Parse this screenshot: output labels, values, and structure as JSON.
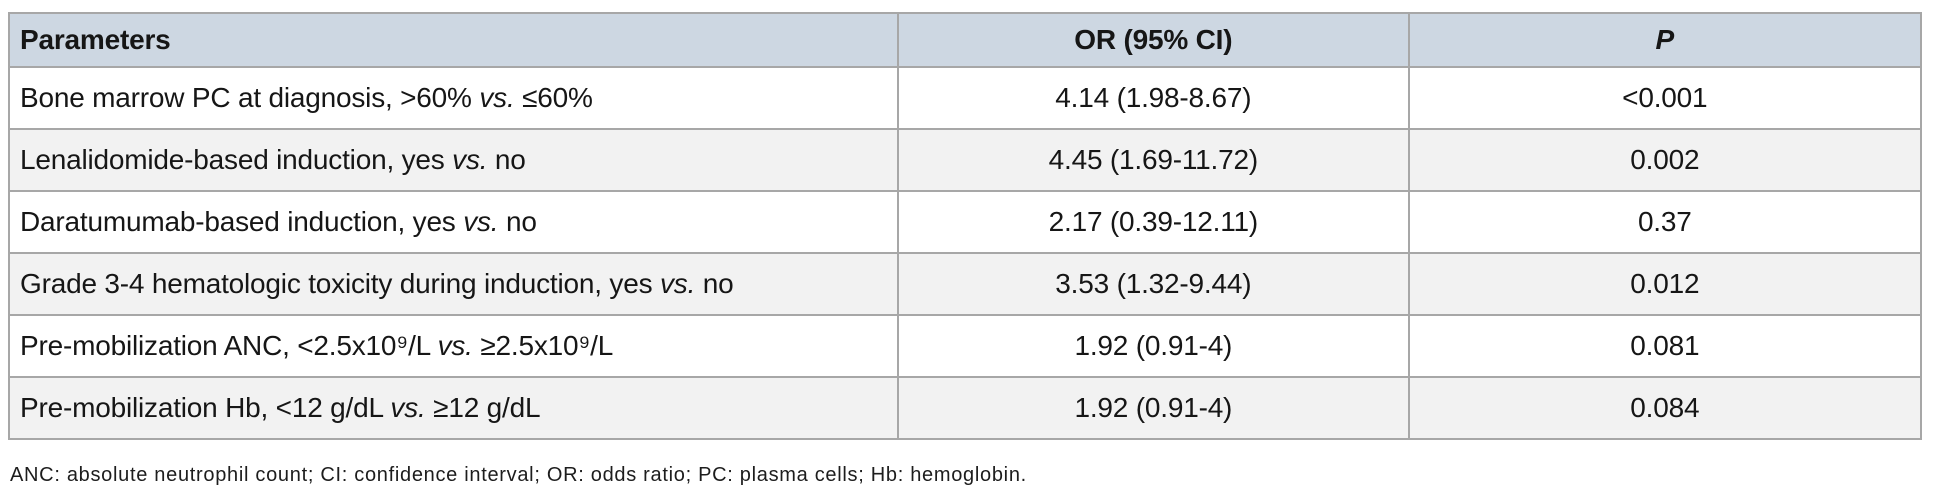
{
  "colors": {
    "header_bg": "#cdd7e2",
    "header_text": "#233f70",
    "row_alt_bg": "#f2f2f2",
    "border": "#a7a7a7",
    "body_text": "#161616"
  },
  "table": {
    "headers": {
      "parameters": "Parameters",
      "or_ci": "OR (95% CI)",
      "p": "P"
    },
    "rows": [
      {
        "param_before_vs": "Bone marrow PC at diagnosis, >60% ",
        "vs_label": "vs.",
        "param_after_vs": " ≤60%",
        "or_ci": "4.14 (1.98-8.67)",
        "p_value": "<0.001"
      },
      {
        "param_before_vs": "Lenalidomide-based induction, yes ",
        "vs_label": "vs.",
        "param_after_vs": " no",
        "or_ci": "4.45 (1.69-11.72)",
        "p_value": "0.002"
      },
      {
        "param_before_vs": "Daratumumab-based induction, yes ",
        "vs_label": "vs.",
        "param_after_vs": " no",
        "or_ci": "2.17 (0.39-12.11)",
        "p_value": "0.37"
      },
      {
        "param_before_vs": "Grade 3-4 hematologic toxicity during induction, yes ",
        "vs_label": "vs.",
        "param_after_vs": " no",
        "or_ci": "3.53 (1.32-9.44)",
        "p_value": "0.012"
      },
      {
        "param_before_vs": "Pre-mobilization ANC, <2.5x10⁹/L ",
        "vs_label": "vs.",
        "param_after_vs": " ≥2.5x10⁹/L",
        "or_ci": "1.92 (0.91-4)",
        "p_value": "0.081"
      },
      {
        "param_before_vs": "Pre-mobilization Hb, <12 g/dL ",
        "vs_label": "vs.",
        "param_after_vs": " ≥12 g/dL",
        "or_ci": "1.92 (0.91-4)",
        "p_value": "0.084"
      }
    ]
  },
  "footnote": "ANC: absolute neutrophil count; CI: confidence interval; OR: odds ratio; PC: plasma cells; Hb: hemoglobin."
}
